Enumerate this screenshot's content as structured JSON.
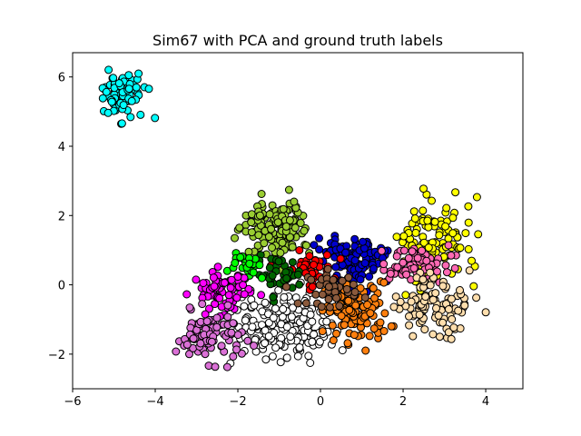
{
  "chart_data": {
    "type": "scatter",
    "title": "Sim67 with PCA and ground truth labels",
    "xlabel": "",
    "ylabel": "",
    "xlim": [
      -6.0,
      4.9
    ],
    "ylim": [
      -3.0,
      6.7
    ],
    "x_ticks": [
      -6,
      -4,
      -2,
      0,
      2,
      4
    ],
    "y_ticks": [
      -2,
      0,
      2,
      4,
      6
    ],
    "x_tick_labels": [
      "−6",
      "−4",
      "−2",
      "0",
      "2",
      "4"
    ],
    "y_tick_labels": [
      "−2",
      "0",
      "2",
      "4",
      "6"
    ],
    "grid": false,
    "legend": "none",
    "marker_edge_color": "#000000",
    "series": [
      {
        "color": "#00ffff",
        "center": [
          -4.8,
          5.5
        ],
        "spread": [
          0.35,
          0.35
        ],
        "count": 90
      },
      {
        "color": "#9acd32",
        "center": [
          -1.1,
          1.6
        ],
        "spread": [
          0.42,
          0.38
        ],
        "count": 140
      },
      {
        "color": "#ffff00",
        "center": [
          2.8,
          1.3
        ],
        "spread": [
          0.5,
          0.6
        ],
        "count": 110
      },
      {
        "color": "#0000cd",
        "center": [
          0.8,
          0.7
        ],
        "spread": [
          0.38,
          0.32
        ],
        "count": 110
      },
      {
        "color": "#ff69b4",
        "center": [
          2.3,
          0.6
        ],
        "spread": [
          0.45,
          0.3
        ],
        "count": 70
      },
      {
        "color": "#ffdead",
        "center": [
          2.7,
          -0.6
        ],
        "spread": [
          0.5,
          0.45
        ],
        "count": 100
      },
      {
        "color": "#ffffff",
        "center": [
          -0.8,
          -1.2
        ],
        "spread": [
          0.7,
          0.45
        ],
        "count": 180
      },
      {
        "color": "#ff7f0e",
        "center": [
          0.9,
          -0.8
        ],
        "spread": [
          0.38,
          0.42
        ],
        "count": 110
      },
      {
        "color": "#ff0000",
        "center": [
          -0.3,
          0.45
        ],
        "spread": [
          0.3,
          0.25
        ],
        "count": 40
      },
      {
        "color": "#006400",
        "center": [
          -1.0,
          0.3
        ],
        "spread": [
          0.28,
          0.25
        ],
        "count": 40
      },
      {
        "color": "#00ff00",
        "center": [
          -1.7,
          0.5
        ],
        "spread": [
          0.25,
          0.2
        ],
        "count": 30
      },
      {
        "color": "#8b5a3c",
        "center": [
          0.3,
          -0.1
        ],
        "spread": [
          0.3,
          0.25
        ],
        "count": 40
      },
      {
        "color": "#ff00ff",
        "center": [
          -2.4,
          -0.2
        ],
        "spread": [
          0.35,
          0.3
        ],
        "count": 70
      },
      {
        "color": "#da70d6",
        "center": [
          -2.7,
          -1.5
        ],
        "spread": [
          0.4,
          0.35
        ],
        "count": 90
      }
    ]
  }
}
